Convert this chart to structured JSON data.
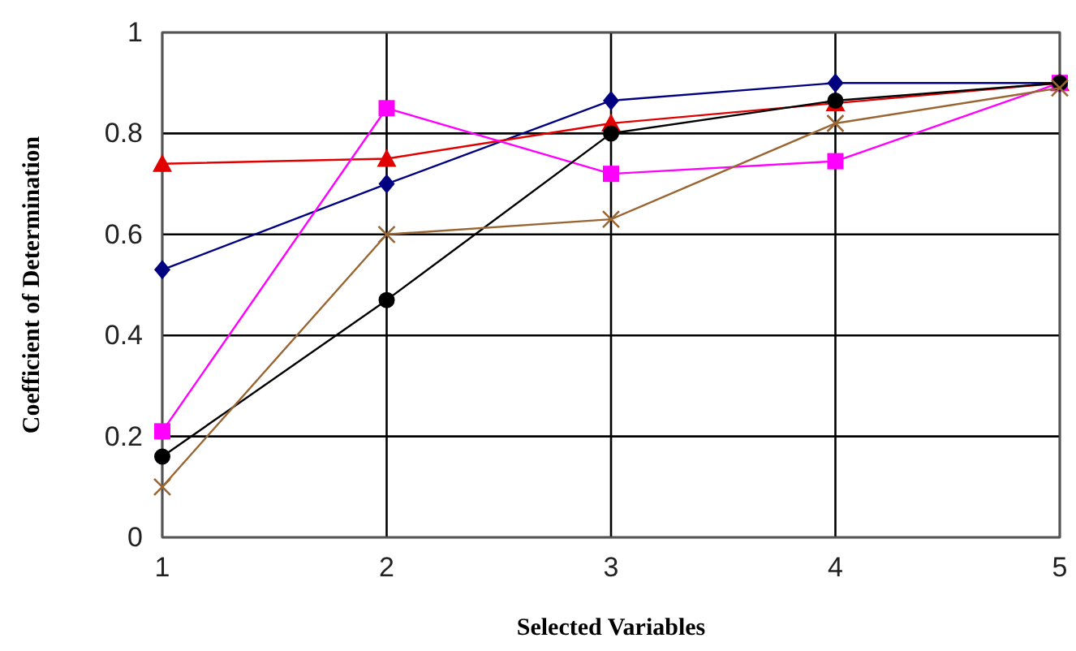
{
  "chart_data": {
    "type": "line",
    "xlabel": "Selected Variables",
    "ylabel": "Coefficient of Determination",
    "x": [
      1,
      2,
      3,
      4,
      5
    ],
    "xlim": [
      1,
      5
    ],
    "xticks": [
      1,
      2,
      3,
      4,
      5
    ],
    "ylim": [
      0,
      1
    ],
    "yticks": [
      0,
      0.2,
      0.4,
      0.6,
      0.8,
      1
    ],
    "grid": true,
    "series": [
      {
        "color": "#000080",
        "marker": "diamond",
        "values": [
          0.53,
          0.7,
          0.865,
          0.9,
          0.9
        ]
      },
      {
        "color": "#e00000",
        "marker": "triangle",
        "values": [
          0.74,
          0.75,
          0.82,
          0.86,
          0.9
        ]
      },
      {
        "color": "#ff00ff",
        "marker": "square",
        "values": [
          0.21,
          0.85,
          0.72,
          0.745,
          0.9
        ]
      },
      {
        "color": "#000000",
        "marker": "circle",
        "values": [
          0.16,
          0.47,
          0.8,
          0.865,
          0.9
        ]
      },
      {
        "color": "#996633",
        "marker": "cross",
        "values": [
          0.1,
          0.6,
          0.63,
          0.82,
          0.89
        ]
      }
    ]
  }
}
